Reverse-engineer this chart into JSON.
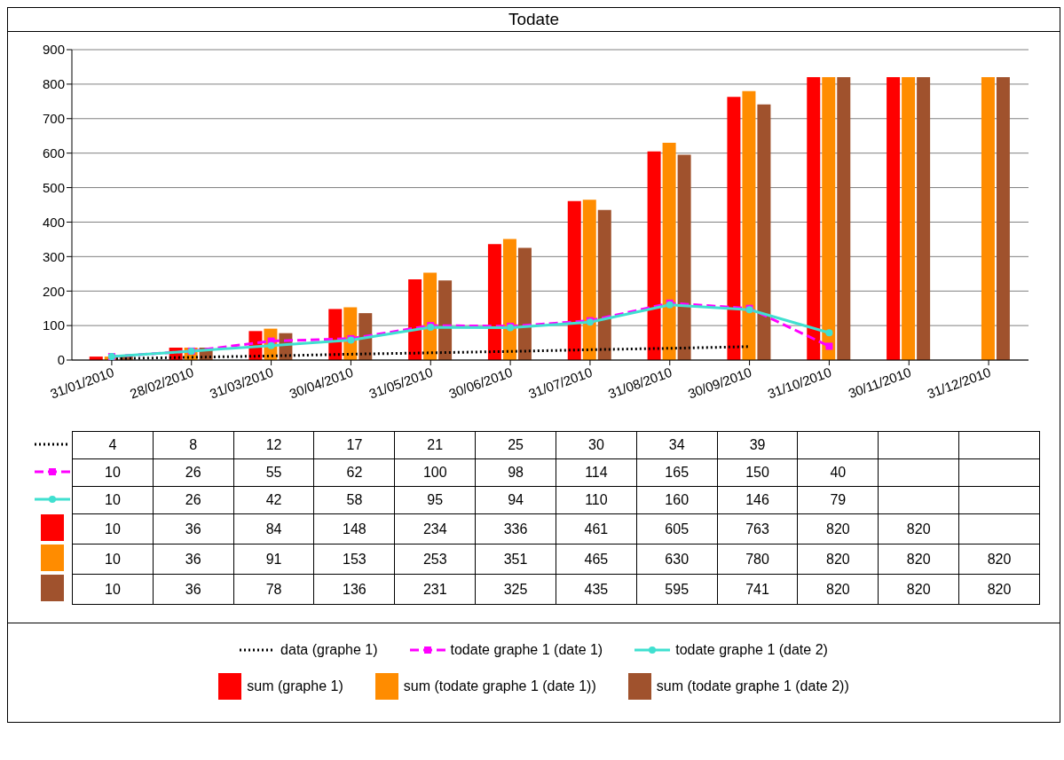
{
  "chart_data": {
    "type": "bar",
    "title": "Todate",
    "categories": [
      "31/01/2010",
      "28/02/2010",
      "31/03/2010",
      "30/04/2010",
      "31/05/2010",
      "30/06/2010",
      "31/07/2010",
      "31/08/2010",
      "30/09/2010",
      "31/10/2010",
      "30/11/2010",
      "31/12/2010"
    ],
    "series": [
      {
        "name": "data (graphe 1)",
        "type": "line",
        "color": "#000000",
        "line_style": "dotted",
        "marker": "none",
        "values": [
          4,
          8,
          12,
          17,
          21,
          25,
          30,
          34,
          39,
          null,
          null,
          null
        ]
      },
      {
        "name": "todate graphe 1 (date 1)",
        "type": "line",
        "color": "#ff00ff",
        "line_style": "dashed",
        "marker": "square",
        "values": [
          10,
          26,
          55,
          62,
          100,
          98,
          114,
          165,
          150,
          40,
          null,
          null
        ]
      },
      {
        "name": "todate graphe 1 (date 2)",
        "type": "line",
        "color": "#40e0d0",
        "line_style": "solid",
        "marker": "circle",
        "values": [
          10,
          26,
          42,
          58,
          95,
          94,
          110,
          160,
          146,
          79,
          null,
          null
        ]
      },
      {
        "name": "sum (graphe 1)",
        "type": "bar",
        "color": "#ff0000",
        "values": [
          10,
          36,
          84,
          148,
          234,
          336,
          461,
          605,
          763,
          820,
          820,
          null
        ]
      },
      {
        "name": "sum (todate graphe 1 (date 1))",
        "type": "bar",
        "color": "#ff8c00",
        "values": [
          10,
          36,
          91,
          153,
          253,
          351,
          465,
          630,
          780,
          820,
          820,
          820
        ]
      },
      {
        "name": "sum (todate graphe 1 (date 2))",
        "type": "bar",
        "color": "#a0522d",
        "values": [
          10,
          36,
          78,
          136,
          231,
          325,
          435,
          595,
          741,
          820,
          820,
          820
        ]
      }
    ],
    "ylim": [
      0,
      900
    ],
    "yticks": [
      0,
      100,
      200,
      300,
      400,
      500,
      600,
      700,
      800,
      900
    ],
    "grid": "y",
    "legend": "bottom",
    "data_labels": true
  }
}
